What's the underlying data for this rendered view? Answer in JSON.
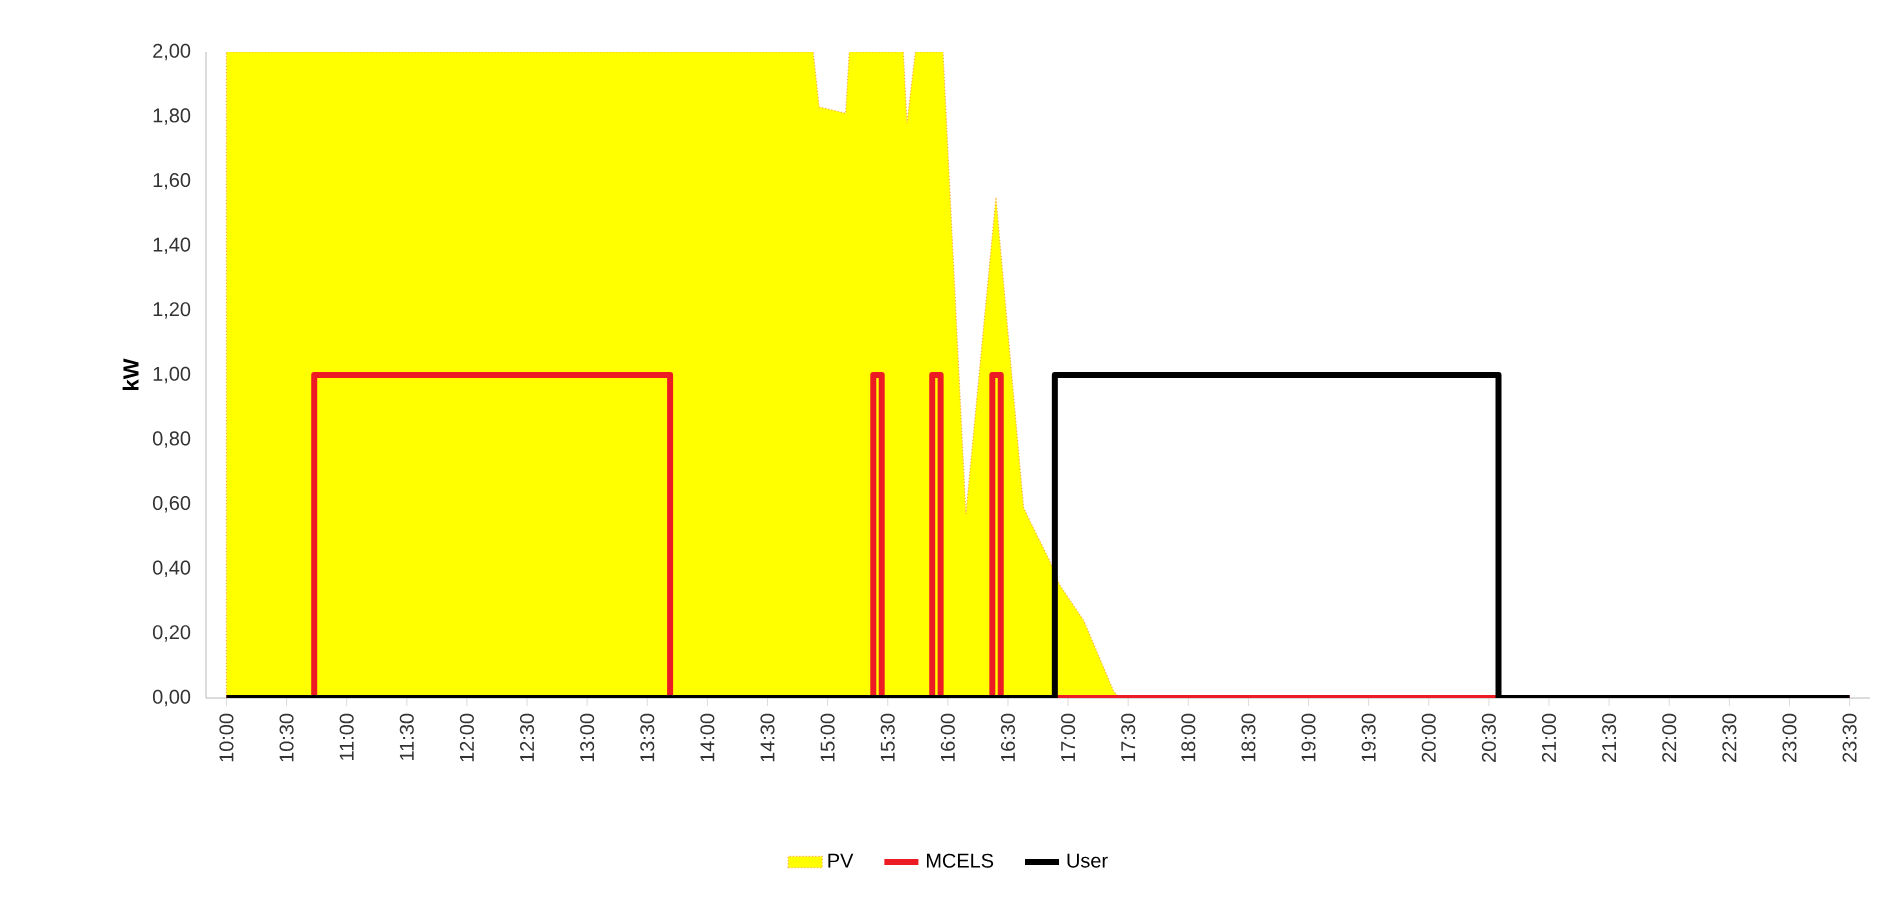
{
  "chart_data": {
    "type": "line",
    "ylabel": "kW",
    "ylim": [
      0,
      2
    ],
    "yticks": [
      {
        "value": 0,
        "label": "0,00"
      },
      {
        "value": 0.2,
        "label": "0,20"
      },
      {
        "value": 0.4,
        "label": "0,40"
      },
      {
        "value": 0.6,
        "label": "0,60"
      },
      {
        "value": 0.8,
        "label": "0,80"
      },
      {
        "value": 1,
        "label": "1,00"
      },
      {
        "value": 1.2,
        "label": "1,20"
      },
      {
        "value": 1.4,
        "label": "1,40"
      },
      {
        "value": 1.6,
        "label": "1,60"
      },
      {
        "value": 1.8,
        "label": "1,80"
      },
      {
        "value": 2,
        "label": "2,00"
      }
    ],
    "xlim": [
      9.83,
      23.67
    ],
    "xticks": [
      {
        "value": 10,
        "label": "10:00"
      },
      {
        "value": 10.5,
        "label": "10:30"
      },
      {
        "value": 11,
        "label": "11:00"
      },
      {
        "value": 11.5,
        "label": "11:30"
      },
      {
        "value": 12,
        "label": "12:00"
      },
      {
        "value": 12.5,
        "label": "12:30"
      },
      {
        "value": 13,
        "label": "13:00"
      },
      {
        "value": 13.5,
        "label": "13:30"
      },
      {
        "value": 14,
        "label": "14:00"
      },
      {
        "value": 14.5,
        "label": "14:30"
      },
      {
        "value": 15,
        "label": "15:00"
      },
      {
        "value": 15.5,
        "label": "15:30"
      },
      {
        "value": 16,
        "label": "16:00"
      },
      {
        "value": 16.5,
        "label": "16:30"
      },
      {
        "value": 17,
        "label": "17:00"
      },
      {
        "value": 17.5,
        "label": "17:30"
      },
      {
        "value": 18,
        "label": "18:00"
      },
      {
        "value": 18.5,
        "label": "18:30"
      },
      {
        "value": 19,
        "label": "19:00"
      },
      {
        "value": 19.5,
        "label": "19:30"
      },
      {
        "value": 20,
        "label": "20:00"
      },
      {
        "value": 20.5,
        "label": "20:30"
      },
      {
        "value": 21,
        "label": "21:00"
      },
      {
        "value": 21.5,
        "label": "21:30"
      },
      {
        "value": 22,
        "label": "22:00"
      },
      {
        "value": 22.5,
        "label": "22:30"
      },
      {
        "value": 23,
        "label": "23:00"
      },
      {
        "value": 23.5,
        "label": "23:30"
      }
    ],
    "legend": "bottom",
    "grid": false,
    "marker": "none",
    "series": [
      {
        "name": "PV",
        "type": "area",
        "color": "#ffff00",
        "x": [
          10,
          14.88,
          14.93,
          15.15,
          15.18,
          15.63,
          15.66,
          15.73,
          15.96,
          16.15,
          16.4,
          16.63,
          16.68,
          16.84,
          16.93,
          17.13,
          17.38,
          17.43,
          23.5
        ],
        "values": [
          2,
          2,
          1.83,
          1.81,
          2,
          2,
          1.78,
          2,
          2,
          0.57,
          1.55,
          0.59,
          0.55,
          0.43,
          0.35,
          0.24,
          0.02,
          0,
          0
        ]
      },
      {
        "name": "MCELS",
        "color": "#ed1c24",
        "x": [
          10,
          10.73,
          10.73,
          13.69,
          13.69,
          15.38,
          15.38,
          15.45,
          15.45,
          15.87,
          15.87,
          15.94,
          15.94,
          16.37,
          16.37,
          16.44,
          16.44,
          23.5
        ],
        "values": [
          0,
          0,
          1,
          1,
          0,
          0,
          1,
          1,
          0,
          0,
          1,
          1,
          0,
          0,
          1,
          1,
          0,
          0
        ]
      },
      {
        "name": "User",
        "color": "#000000",
        "x": [
          10,
          16.89,
          16.89,
          20.58,
          20.58,
          23.5
        ],
        "values": [
          0,
          0,
          1,
          1,
          0,
          0
        ]
      }
    ]
  }
}
